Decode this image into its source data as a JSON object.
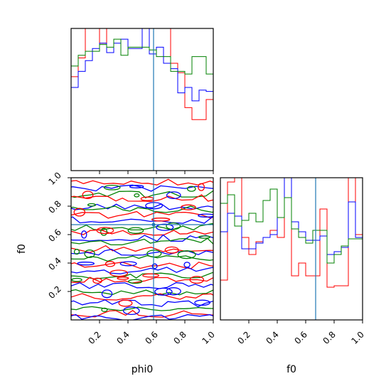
{
  "chart_data": [
    {
      "panel": "phi0-marginal",
      "type": "step-histogram",
      "xlim": [
        0,
        1
      ],
      "truth_x": 0.58,
      "series": [
        {
          "color": "#ff0000",
          "edges": [
            0,
            0.05,
            0.1,
            0.15,
            0.2,
            0.25,
            0.3,
            0.35,
            0.4,
            0.45,
            0.5,
            0.55,
            0.6,
            0.65,
            0.7,
            0.75,
            0.8,
            0.85,
            0.9,
            0.95,
            1.0
          ],
          "values": [
            0.7,
            0.84,
            1.06,
            1.06,
            0.95,
            1.06,
            1.06,
            1.06,
            1.06,
            1.06,
            1.06,
            1.06,
            1.06,
            1.06,
            0.8,
            0.73,
            0.47,
            0.38,
            0.38,
            0.53
          ]
        },
        {
          "color": "#0000ff",
          "edges": [
            0,
            0.05,
            0.1,
            0.15,
            0.2,
            0.25,
            0.3,
            0.35,
            0.4,
            0.45,
            0.5,
            0.55,
            0.6,
            0.65,
            0.7,
            0.75,
            0.8,
            0.85,
            0.9,
            0.95,
            1.0
          ],
          "values": [
            0.62,
            0.74,
            0.82,
            0.91,
            0.95,
            0.88,
            0.95,
            0.98,
            0.91,
            0.91,
            1.06,
            0.87,
            0.92,
            0.8,
            0.76,
            0.58,
            0.62,
            0.52,
            0.6,
            0.59
          ]
        },
        {
          "color": "#008000",
          "edges": [
            0,
            0.05,
            0.1,
            0.15,
            0.2,
            0.25,
            0.3,
            0.35,
            0.4,
            0.45,
            0.5,
            0.55,
            0.6,
            0.65,
            0.7,
            0.75,
            0.8,
            0.85,
            0.9,
            0.95,
            1.0
          ],
          "values": [
            0.78,
            0.86,
            0.89,
            0.89,
            0.94,
            0.92,
            0.98,
            0.86,
            0.92,
            0.92,
            0.92,
            0.9,
            0.85,
            0.85,
            0.74,
            0.74,
            0.72,
            0.85,
            0.85,
            0.72
          ]
        }
      ],
      "ylim": [
        0,
        1.06
      ]
    },
    {
      "panel": "phi0-f0-2d",
      "type": "contour",
      "xlim": [
        0,
        1
      ],
      "ylim": [
        0,
        1
      ],
      "truth_x": 0.58,
      "truth_y": 0.67
    },
    {
      "panel": "f0-marginal",
      "type": "step-histogram",
      "xlim": [
        0,
        1
      ],
      "truth_x": 0.67,
      "series": [
        {
          "color": "#ff0000",
          "edges": [
            0,
            0.05,
            0.1,
            0.15,
            0.2,
            0.25,
            0.3,
            0.35,
            0.4,
            0.45,
            0.5,
            0.55,
            0.6,
            0.65,
            0.7,
            0.75,
            0.8,
            0.85,
            0.9,
            0.95,
            1.0
          ],
          "values": [
            0.28,
            0.97,
            1.0,
            0.58,
            0.46,
            0.55,
            0.58,
            0.63,
            0.58,
            1.0,
            0.31,
            0.4,
            0.31,
            0.31,
            0.78,
            0.23,
            0.24,
            0.24,
            1.0,
            0.6
          ]
        },
        {
          "color": "#0000ff",
          "edges": [
            0,
            0.05,
            0.1,
            0.15,
            0.2,
            0.25,
            0.3,
            0.35,
            0.4,
            0.45,
            0.5,
            0.55,
            0.6,
            0.65,
            0.7,
            0.75,
            0.8,
            0.85,
            0.9,
            0.95,
            1.0
          ],
          "values": [
            0.62,
            0.75,
            0.73,
            0.5,
            0.5,
            0.54,
            0.58,
            0.6,
            0.72,
            1.0,
            0.69,
            0.62,
            0.56,
            0.56,
            0.59,
            0.46,
            0.48,
            0.51,
            0.83,
            0.58
          ]
        },
        {
          "color": "#008000",
          "edges": [
            0,
            0.05,
            0.1,
            0.15,
            0.2,
            0.25,
            0.3,
            0.35,
            0.4,
            0.45,
            0.5,
            0.55,
            0.6,
            0.65,
            0.7,
            0.75,
            0.8,
            0.85,
            0.9,
            0.95,
            1.0
          ],
          "values": [
            0.82,
            0.88,
            0.66,
            0.7,
            0.75,
            0.69,
            0.84,
            0.92,
            0.72,
            0.86,
            0.64,
            0.58,
            0.54,
            0.63,
            0.63,
            0.4,
            0.46,
            0.52,
            0.57,
            0.57
          ]
        }
      ],
      "ylim": [
        0,
        1.0
      ]
    }
  ],
  "axes": {
    "phi0_label": "phi0",
    "f0_label": "f0",
    "ticks": [
      "0.2",
      "0.4",
      "0.6",
      "0.8",
      "1.0"
    ],
    "ticks_major": [
      0.2,
      0.4,
      0.6,
      0.8,
      1.0
    ]
  },
  "colors": {
    "red": "#ff0000",
    "blue": "#0000ff",
    "green": "#008000",
    "truth": "#1f77b4",
    "axis": "#000000"
  }
}
